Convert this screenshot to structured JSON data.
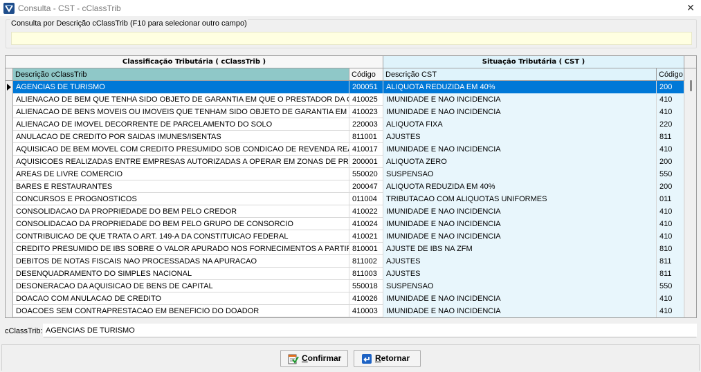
{
  "window": {
    "title": "Consulta - CST - cClassTrib",
    "close_glyph": "✕"
  },
  "search": {
    "legend": "Consulta por Descrição cClassTrib (F10 para selecionar outro campo)",
    "value": ""
  },
  "grid": {
    "group_left": "Classificação Tributária ( cClassTrib )",
    "group_right": "Situação Tributária ( CST )",
    "columns": [
      "Descrição cClassTrib",
      "Código",
      "Descrição CST",
      "Código"
    ],
    "selected_index": 0,
    "rows": [
      {
        "desc": "AGENCIAS DE TURISMO",
        "code": "200051",
        "cst_desc": "ALIQUOTA REDUZIDA EM 40%",
        "cst_code": "200"
      },
      {
        "desc": "ALIENACAO DE BEM QUE TENHA SIDO OBJETO DE GARANTIA EM QUE O PRESTADOR DA GARANTIA",
        "code": "410025",
        "cst_desc": "IMUNIDADE E NAO INCIDENCIA",
        "cst_code": "410"
      },
      {
        "desc": "ALIENACAO DE BENS MOVEIS OU IMOVEIS QUE TENHAM SIDO OBJETO DE GARANTIA EM QUE O PR",
        "code": "410023",
        "cst_desc": "IMUNIDADE E NAO INCIDENCIA",
        "cst_code": "410"
      },
      {
        "desc": "ALIENACAO DE IMOVEL DECORRENTE DE PARCELAMENTO DO SOLO",
        "code": "220003",
        "cst_desc": "ALIQUOTA FIXA",
        "cst_code": "220"
      },
      {
        "desc": "ANULACAO DE CREDITO POR SAIDAS IMUNES/ISENTAS",
        "code": "811001",
        "cst_desc": "AJUSTES",
        "cst_code": "811"
      },
      {
        "desc": "AQUISICAO DE BEM MOVEL COM CREDITO PRESUMIDO SOB CONDICAO DE REVENDA REALIZADA",
        "code": "410017",
        "cst_desc": "IMUNIDADE E NAO INCIDENCIA",
        "cst_code": "410"
      },
      {
        "desc": "AQUISICOES REALIZADAS ENTRE EMPRESAS AUTORIZADAS A OPERAR EM ZONAS DE PROCESSAM",
        "code": "200001",
        "cst_desc": "ALIQUOTA ZERO",
        "cst_code": "200"
      },
      {
        "desc": "AREAS DE LIVRE COMERCIO",
        "code": "550020",
        "cst_desc": "SUSPENSAO",
        "cst_code": "550"
      },
      {
        "desc": "BARES E RESTAURANTES",
        "code": "200047",
        "cst_desc": "ALIQUOTA REDUZIDA EM 40%",
        "cst_code": "200"
      },
      {
        "desc": "CONCURSOS E PROGNOSTICOS",
        "code": "011004",
        "cst_desc": "TRIBUTACAO COM ALIQUOTAS UNIFORMES",
        "cst_code": "011"
      },
      {
        "desc": "CONSOLIDACAO DA PROPRIEDADE DO BEM PELO CREDOR",
        "code": "410022",
        "cst_desc": "IMUNIDADE E NAO INCIDENCIA",
        "cst_code": "410"
      },
      {
        "desc": "CONSOLIDACAO DA PROPRIEDADE DO BEM PELO GRUPO DE CONSORCIO",
        "code": "410024",
        "cst_desc": "IMUNIDADE E NAO INCIDENCIA",
        "cst_code": "410"
      },
      {
        "desc": "CONTRIBUICAO DE QUE TRATA O ART. 149-A DA CONSTITUICAO FEDERAL",
        "code": "410021",
        "cst_desc": "IMUNIDADE E NAO INCIDENCIA",
        "cst_code": "410"
      },
      {
        "desc": "CREDITO PRESUMIDO DE IBS SOBRE O VALOR APURADO NOS FORNECIMENTOS A PARTIR DA ZFM",
        "code": "810001",
        "cst_desc": "AJUSTE DE IBS NA ZFM",
        "cst_code": "810"
      },
      {
        "desc": "DEBITOS DE NOTAS FISCAIS NAO PROCESSADAS NA APURACAO",
        "code": "811002",
        "cst_desc": "AJUSTES",
        "cst_code": "811"
      },
      {
        "desc": "DESENQUADRAMENTO DO SIMPLES NACIONAL",
        "code": "811003",
        "cst_desc": "AJUSTES",
        "cst_code": "811"
      },
      {
        "desc": "DESONERACAO DA AQUISICAO DE BENS DE CAPITAL",
        "code": "550018",
        "cst_desc": "SUSPENSAO",
        "cst_code": "550"
      },
      {
        "desc": "DOACAO COM ANULACAO DE CREDITO",
        "code": "410026",
        "cst_desc": "IMUNIDADE E NAO INCIDENCIA",
        "cst_code": "410"
      },
      {
        "desc": "DOACOES SEM CONTRAPRESTACAO EM BENEFICIO DO DOADOR",
        "code": "410003",
        "cst_desc": "IMUNIDADE E NAO INCIDENCIA",
        "cst_code": "410"
      }
    ]
  },
  "detail": {
    "label": "cClassTrib:",
    "value": "AGENCIAS DE TURISMO"
  },
  "buttons": {
    "confirm_first": "C",
    "confirm_rest": "onfirmar",
    "return_first": "R",
    "return_rest": "etornar"
  },
  "colors": {
    "selection": "#0078d7",
    "search_bg": "#ffffe1",
    "cst_bg": "#e8f6fc",
    "desc_header": "#8fc8c8"
  },
  "icons": {
    "app": "app-logo-icon",
    "close": "close-icon",
    "row_pointer": "row-pointer-icon",
    "confirm": "confirm-checklist-icon",
    "return": "return-arrow-icon"
  }
}
